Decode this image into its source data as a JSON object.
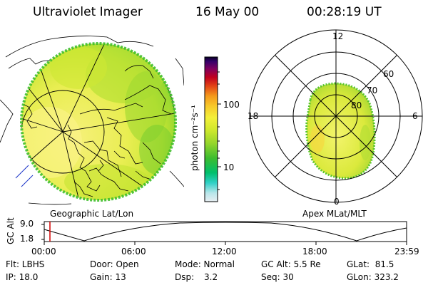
{
  "header": {
    "instrument": "Ultraviolet Imager",
    "date": "16 May 00",
    "time": "00:28:19 UT"
  },
  "colorbar": {
    "unit_label": "photon cm⁻²s⁻¹",
    "tick_100": "100",
    "tick_10": "10",
    "colors": [
      "#dde7ee",
      "#2dd1c9",
      "#00c17a",
      "#27b537",
      "#7fd12a",
      "#c9e62b",
      "#f2f23a",
      "#f8d52d",
      "#f6a21d",
      "#ef6c13",
      "#d9261b",
      "#b30022",
      "#7a0057",
      "#3c0070",
      "#0a0030"
    ]
  },
  "geo_map": {
    "label": "Geographic Lat/Lon",
    "colors": {
      "disk_base": "#d8ea32",
      "disk_bright": "#f6f07a",
      "rim": "#53c62e",
      "coast": "#000000"
    }
  },
  "polar_plot": {
    "label": "Apex MLat/MLT",
    "mlt_top": "12",
    "mlt_bottom": "0",
    "mlt_left": "18",
    "mlt_right": "6",
    "lat_60": "60",
    "lat_70": "70",
    "lat_80": "80"
  },
  "altitude_panel": {
    "ylabel": "GC Alt",
    "y_top": "9.0",
    "y_bottom": "1.8",
    "x_ticks": [
      "00:00",
      "06:00",
      "12:00",
      "18:00",
      "23:59"
    ],
    "marker_color": "#d40000"
  },
  "status": {
    "flt": "Flt: LBHS",
    "ip": "IP: 18.0",
    "door": "Door: Open",
    "gain": "Gain: 13",
    "mode": "Mode: Normal",
    "dsp_label": "Dsp:",
    "dsp_value": "3.2",
    "gc_alt": "GC Alt: 5.5 Re",
    "seq": "Seq: 30",
    "glat": "GLat:  81.5",
    "glon": "GLon: 323.2"
  }
}
